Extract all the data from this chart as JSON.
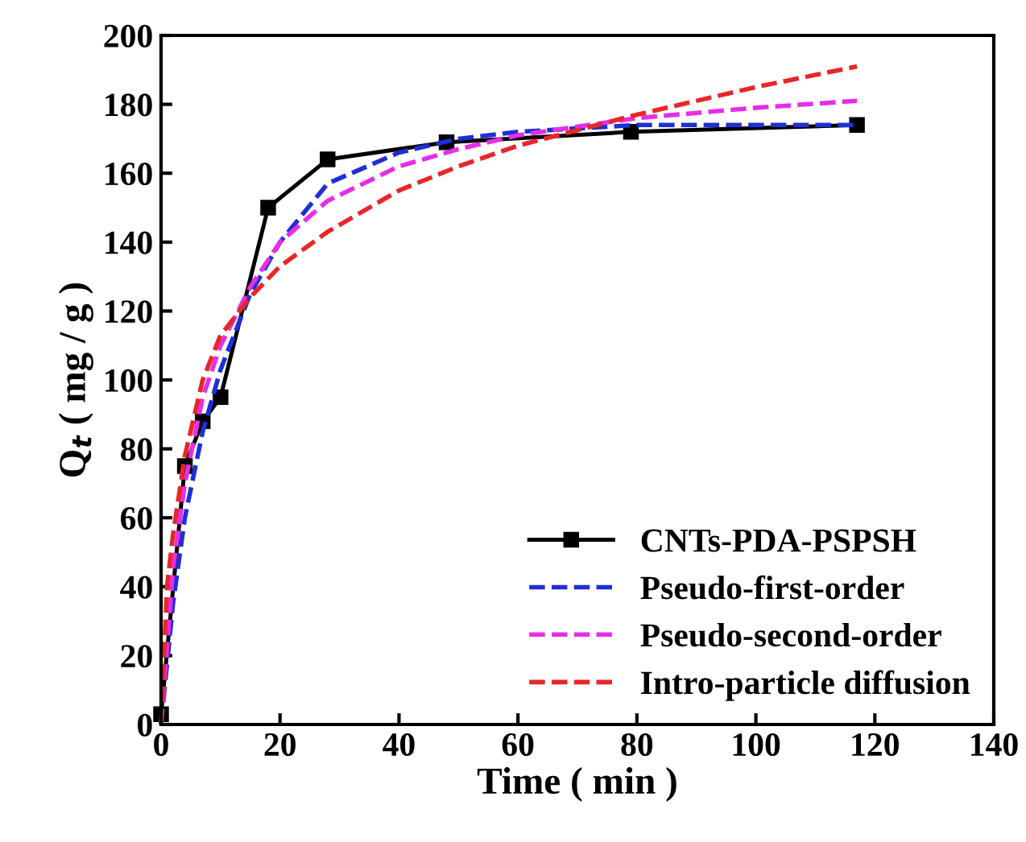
{
  "chart_data": {
    "type": "line",
    "xlabel": "Time ( min )",
    "ylabel": "Q$_{t}$ ( mg / g )",
    "xlim": [
      0,
      140
    ],
    "ylim": [
      0,
      200
    ],
    "xticks": [
      0,
      20,
      40,
      60,
      80,
      100,
      120,
      140
    ],
    "yticks": [
      0,
      20,
      40,
      60,
      80,
      100,
      120,
      140,
      160,
      180,
      200
    ],
    "grid": false,
    "legend": "bottom right",
    "series": [
      {
        "name": "CNTs-PDA-PSPSH",
        "color": "#000000",
        "marker": "square",
        "line_style": "solid",
        "x": [
          0,
          4,
          7,
          10,
          18,
          28,
          48,
          79,
          117
        ],
        "values": [
          3,
          75,
          88,
          95,
          150,
          164,
          169,
          172,
          174
        ]
      },
      {
        "name": "Pseudo-first-order",
        "color": "#1f2fd6",
        "marker": "none",
        "line_style": "dashed",
        "x": [
          0,
          2,
          4,
          7,
          10,
          15,
          20,
          28,
          40,
          50,
          60,
          80,
          100,
          117
        ],
        "values": [
          0,
          35,
          60,
          85,
          103,
          125,
          140,
          157,
          166,
          170,
          172,
          174,
          174,
          174
        ]
      },
      {
        "name": "Pseudo-second-order",
        "color": "#e62ee6",
        "marker": "none",
        "line_style": "dashed",
        "x": [
          0,
          2,
          4,
          7,
          10,
          15,
          20,
          28,
          40,
          50,
          60,
          80,
          100,
          117
        ],
        "values": [
          0,
          45,
          70,
          95,
          110,
          127,
          140,
          152,
          162,
          167,
          171,
          176,
          179,
          181
        ]
      },
      {
        "name": "Intro-particle diffusion",
        "color": "#e8262a",
        "marker": "none",
        "line_style": "dashed",
        "x": [
          0,
          1,
          2,
          4,
          7,
          10,
          15,
          20,
          28,
          40,
          50,
          60,
          80,
          100,
          117
        ],
        "values": [
          0,
          40,
          55,
          78,
          100,
          113,
          124,
          133,
          143,
          155,
          162,
          168,
          177,
          185,
          191
        ]
      }
    ]
  }
}
